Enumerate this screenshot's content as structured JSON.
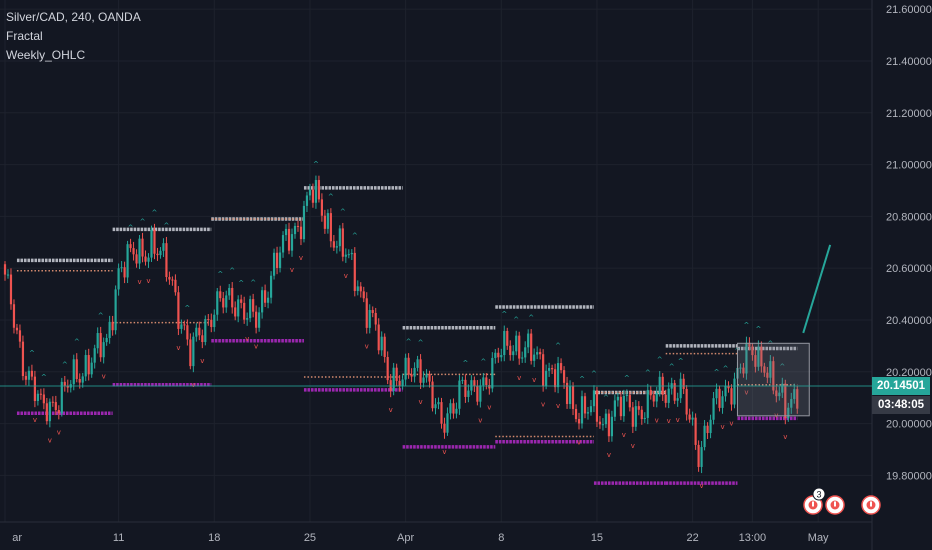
{
  "legend": {
    "symbol_line": "Silver/CAD, 240, OANDA",
    "indicator_1": "Fractal",
    "indicator_2": "Weekly_OHLC"
  },
  "colors": {
    "background": "#131722",
    "grid": "#1e222d",
    "up": "#26a69a",
    "down": "#ef5350",
    "level_high": "#b2b5be",
    "level_low": "#9c27b0",
    "level_mid": "#d48a6e",
    "fractal_up": "#26a69a",
    "fractal_down": "#ef5350",
    "current_price": "#26a69a",
    "countdown": "#363a45",
    "projection": "#26a69a"
  },
  "price_tags": {
    "current_price": "20.14501",
    "countdown": "03:48:05"
  },
  "event_badge_count": "3",
  "chart_data": {
    "type": "candlestick",
    "symbol": "Silver/CAD",
    "interval": "240",
    "source": "OANDA",
    "ylim": [
      19.62,
      21.62
    ],
    "y_ticks": [
      "21.60000",
      "21.40000",
      "21.20000",
      "21.00000",
      "20.80000",
      "20.60000",
      "20.40000",
      "20.20000",
      "20.00000",
      "19.80000"
    ],
    "y_tick_values": [
      21.6,
      21.4,
      21.2,
      21.0,
      20.8,
      20.6,
      20.4,
      20.2,
      20.0,
      19.8
    ],
    "x_ticks": [
      "ar",
      "11",
      "18",
      "25",
      "Apr",
      "8",
      "15",
      "22",
      "13:00",
      "May"
    ],
    "x_tick_index": [
      0,
      38,
      70,
      102,
      134,
      166,
      198,
      230,
      250,
      272
    ],
    "x_range": [
      0,
      290
    ],
    "weekly_levels": [
      {
        "start": 4,
        "end": 36,
        "high": 20.63,
        "low": 20.04,
        "mid": 20.59
      },
      {
        "start": 36,
        "end": 69,
        "high": 20.75,
        "low": 20.15,
        "mid": 20.39
      },
      {
        "start": 69,
        "end": 100,
        "high": 20.79,
        "low": 20.32,
        "mid": 20.79
      },
      {
        "start": 100,
        "end": 133,
        "high": 20.91,
        "low": 20.13,
        "mid": 20.18
      },
      {
        "start": 133,
        "end": 164,
        "high": 20.37,
        "low": 19.91,
        "mid": 20.19
      },
      {
        "start": 164,
        "end": 197,
        "high": 20.45,
        "low": 19.93,
        "mid": 19.95
      },
      {
        "start": 197,
        "end": 221,
        "high": 20.12,
        "low": 19.77,
        "mid": 20.12
      },
      {
        "start": 221,
        "end": 245,
        "high": 20.3,
        "low": 19.77,
        "mid": 20.27
      },
      {
        "start": 245,
        "end": 265,
        "high": 20.29,
        "low": 20.02,
        "mid": 20.15
      }
    ],
    "projection_line": {
      "x0": 267,
      "y0": 20.35,
      "x1": 276,
      "y1": 20.69
    },
    "current_price": 20.14501
  }
}
